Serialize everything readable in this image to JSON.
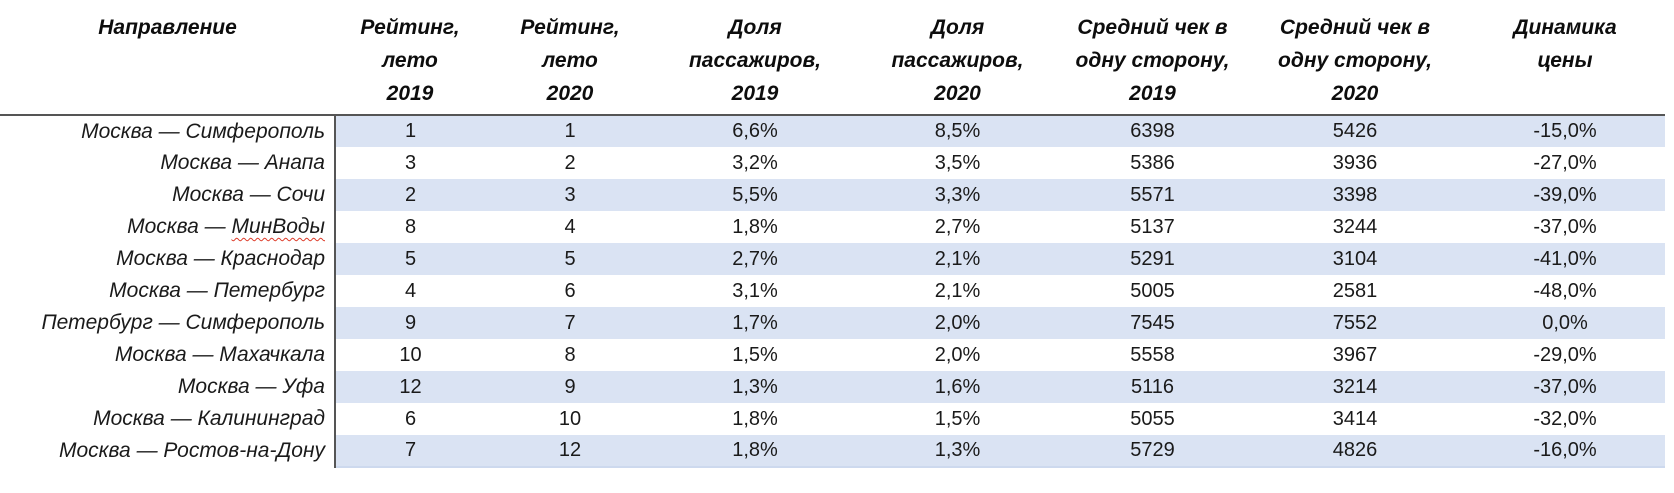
{
  "chart_data": {
    "type": "table",
    "title": "",
    "columns": [
      "Направление",
      "Рейтинг, лето 2019",
      "Рейтинг, лето 2020",
      "Доля пассажиров, 2019",
      "Доля пассажиров, 2020",
      "Средний чек в одну сторону, 2019",
      "Средний чек в одну сторону, 2020",
      "Динамика цены"
    ],
    "rows": [
      [
        "Москва — Симферополь",
        1,
        1,
        "6,6%",
        "8,5%",
        6398,
        5426,
        "-15,0%"
      ],
      [
        "Москва — Анапа",
        3,
        2,
        "3,2%",
        "3,5%",
        5386,
        3936,
        "-27,0%"
      ],
      [
        "Москва — Сочи",
        2,
        3,
        "5,5%",
        "3,3%",
        5571,
        3398,
        "-39,0%"
      ],
      [
        "Москва — МинВоды",
        8,
        4,
        "1,8%",
        "2,7%",
        5137,
        3244,
        "-37,0%"
      ],
      [
        "Москва — Краснодар",
        5,
        5,
        "2,7%",
        "2,1%",
        5291,
        3104,
        "-41,0%"
      ],
      [
        "Москва — Петербург",
        4,
        6,
        "3,1%",
        "2,1%",
        5005,
        2581,
        "-48,0%"
      ],
      [
        "Петербург — Симферополь",
        9,
        7,
        "1,7%",
        "2,0%",
        7545,
        7552,
        "0,0%"
      ],
      [
        "Москва — Махачкала",
        10,
        8,
        "1,5%",
        "2,0%",
        5558,
        3967,
        "-29,0%"
      ],
      [
        "Москва — Уфа",
        12,
        9,
        "1,3%",
        "1,6%",
        5116,
        3214,
        "-37,0%"
      ],
      [
        "Москва — Калининград",
        6,
        10,
        "1,8%",
        "1,5%",
        5055,
        3414,
        "-32,0%"
      ],
      [
        "Москва — Ростов-на-Дону",
        7,
        12,
        "1,8%",
        "1,3%",
        5729,
        4826,
        "-16,0%"
      ]
    ],
    "layout": {
      "grid": "off",
      "row_striping": "alternating light blue on data columns",
      "header_style": "bold italic"
    }
  },
  "table": {
    "headers": [
      "Направление",
      "Рейтинг,\nлето\n2019",
      "Рейтинг,\nлето\n2020",
      "Доля\nпассажиров,\n2019",
      "Доля\nпассажиров,\n2020",
      "Средний чек в\nодну сторону,\n2019",
      "Средний чек в\nодну сторону,\n2020",
      "Динамика\nцены"
    ],
    "rows": [
      {
        "route_pre": "Москва — Симферополь",
        "route_spell": "",
        "rating_2019": "1",
        "rating_2020": "1",
        "share_2019": "6,6%",
        "share_2020": "8,5%",
        "check_2019": "6398",
        "check_2020": "5426",
        "dynamics": "-15,0%"
      },
      {
        "route_pre": "Москва — Анапа",
        "route_spell": "",
        "rating_2019": "3",
        "rating_2020": "2",
        "share_2019": "3,2%",
        "share_2020": "3,5%",
        "check_2019": "5386",
        "check_2020": "3936",
        "dynamics": "-27,0%"
      },
      {
        "route_pre": "Москва — Сочи",
        "route_spell": "",
        "rating_2019": "2",
        "rating_2020": "3",
        "share_2019": "5,5%",
        "share_2020": "3,3%",
        "check_2019": "5571",
        "check_2020": "3398",
        "dynamics": "-39,0%"
      },
      {
        "route_pre": "Москва — ",
        "route_spell": "МинВоды",
        "rating_2019": "8",
        "rating_2020": "4",
        "share_2019": "1,8%",
        "share_2020": "2,7%",
        "check_2019": "5137",
        "check_2020": "3244",
        "dynamics": "-37,0%"
      },
      {
        "route_pre": "Москва — Краснодар",
        "route_spell": "",
        "rating_2019": "5",
        "rating_2020": "5",
        "share_2019": "2,7%",
        "share_2020": "2,1%",
        "check_2019": "5291",
        "check_2020": "3104",
        "dynamics": "-41,0%"
      },
      {
        "route_pre": "Москва — Петербург",
        "route_spell": "",
        "rating_2019": "4",
        "rating_2020": "6",
        "share_2019": "3,1%",
        "share_2020": "2,1%",
        "check_2019": "5005",
        "check_2020": "2581",
        "dynamics": "-48,0%"
      },
      {
        "route_pre": "Петербург — Симферополь",
        "route_spell": "",
        "rating_2019": "9",
        "rating_2020": "7",
        "share_2019": "1,7%",
        "share_2020": "2,0%",
        "check_2019": "7545",
        "check_2020": "7552",
        "dynamics": "0,0%"
      },
      {
        "route_pre": "Москва — Махачкала",
        "route_spell": "",
        "rating_2019": "10",
        "rating_2020": "8",
        "share_2019": "1,5%",
        "share_2020": "2,0%",
        "check_2019": "5558",
        "check_2020": "3967",
        "dynamics": "-29,0%"
      },
      {
        "route_pre": "Москва — Уфа",
        "route_spell": "",
        "rating_2019": "12",
        "rating_2020": "9",
        "share_2019": "1,3%",
        "share_2020": "1,6%",
        "check_2019": "5116",
        "check_2020": "3214",
        "dynamics": "-37,0%"
      },
      {
        "route_pre": "Москва — Калининград",
        "route_spell": "",
        "rating_2019": "6",
        "rating_2020": "10",
        "share_2019": "1,8%",
        "share_2020": "1,5%",
        "check_2019": "5055",
        "check_2020": "3414",
        "dynamics": "-32,0%"
      },
      {
        "route_pre": "Москва — Ростов-на-Дону",
        "route_spell": "",
        "rating_2019": "7",
        "rating_2020": "12",
        "share_2019": "1,8%",
        "share_2020": "1,3%",
        "check_2019": "5729",
        "check_2020": "4826",
        "dynamics": "-16,0%"
      }
    ]
  },
  "colors": {
    "stripe": "#dae3f3",
    "header_rule": "#555555",
    "bottom_rule": "#cdd9ee",
    "spellcheck_underline": "#dd3a28",
    "text": "#1a1a1a",
    "background": "#ffffff"
  }
}
